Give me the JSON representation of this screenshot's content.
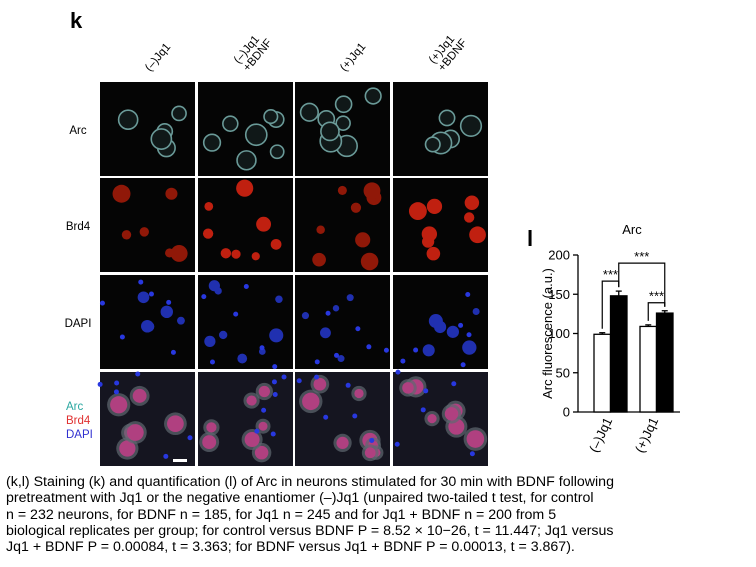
{
  "panel_k": {
    "label": "k",
    "columns": [
      [
        "(–)Jq1"
      ],
      [
        "(–)Jq1",
        "+BDNF"
      ],
      [
        "(+)Jq1"
      ],
      [
        "(+)Jq1",
        "+BDNF"
      ]
    ],
    "rows": [
      "Arc",
      "Brd4",
      "DAPI"
    ],
    "merge_labels": [
      "Arc",
      "Brd4",
      "DAPI"
    ]
  },
  "chart_data": {
    "type": "bar",
    "label": "l",
    "title": "Arc",
    "y_label": "Arc fluorescence (a.u.)",
    "categories": [
      "(–)Jq1",
      "(+)Jq1"
    ],
    "series": [
      {
        "color": "#ffffff",
        "values": [
          99,
          109
        ],
        "errors": [
          2,
          2
        ]
      },
      {
        "color": "#000000",
        "values": [
          148,
          126
        ],
        "errors": [
          6,
          3
        ]
      }
    ],
    "ylim": [
      0,
      200
    ],
    "yticks": [
      0,
      50,
      100,
      150,
      200
    ],
    "annotations": [
      "***",
      "***",
      "***"
    ]
  },
  "caption": [
    "(k,l) Staining (k) and quantification (l) of Arc in neurons stimulated for 30 min with BDNF following",
    "pretreatment with Jq1 or the negative enantiomer (–)Jq1 (unpaired two-tailed t test, for control",
    "n = 232 neurons, for BDNF n = 185, for Jq1 n = 245 and for Jq1 + BDNF n = 200 from 5",
    "biological replicates per group; for control versus BDNF P = 8.52 × 10−26, t = 11.447; Jq1 versus",
    "Jq1 + BDNF P = 0.00084, t = 3.363; for BDNF versus Jq1 + BDNF P = 0.00013, t = 3.867)."
  ]
}
